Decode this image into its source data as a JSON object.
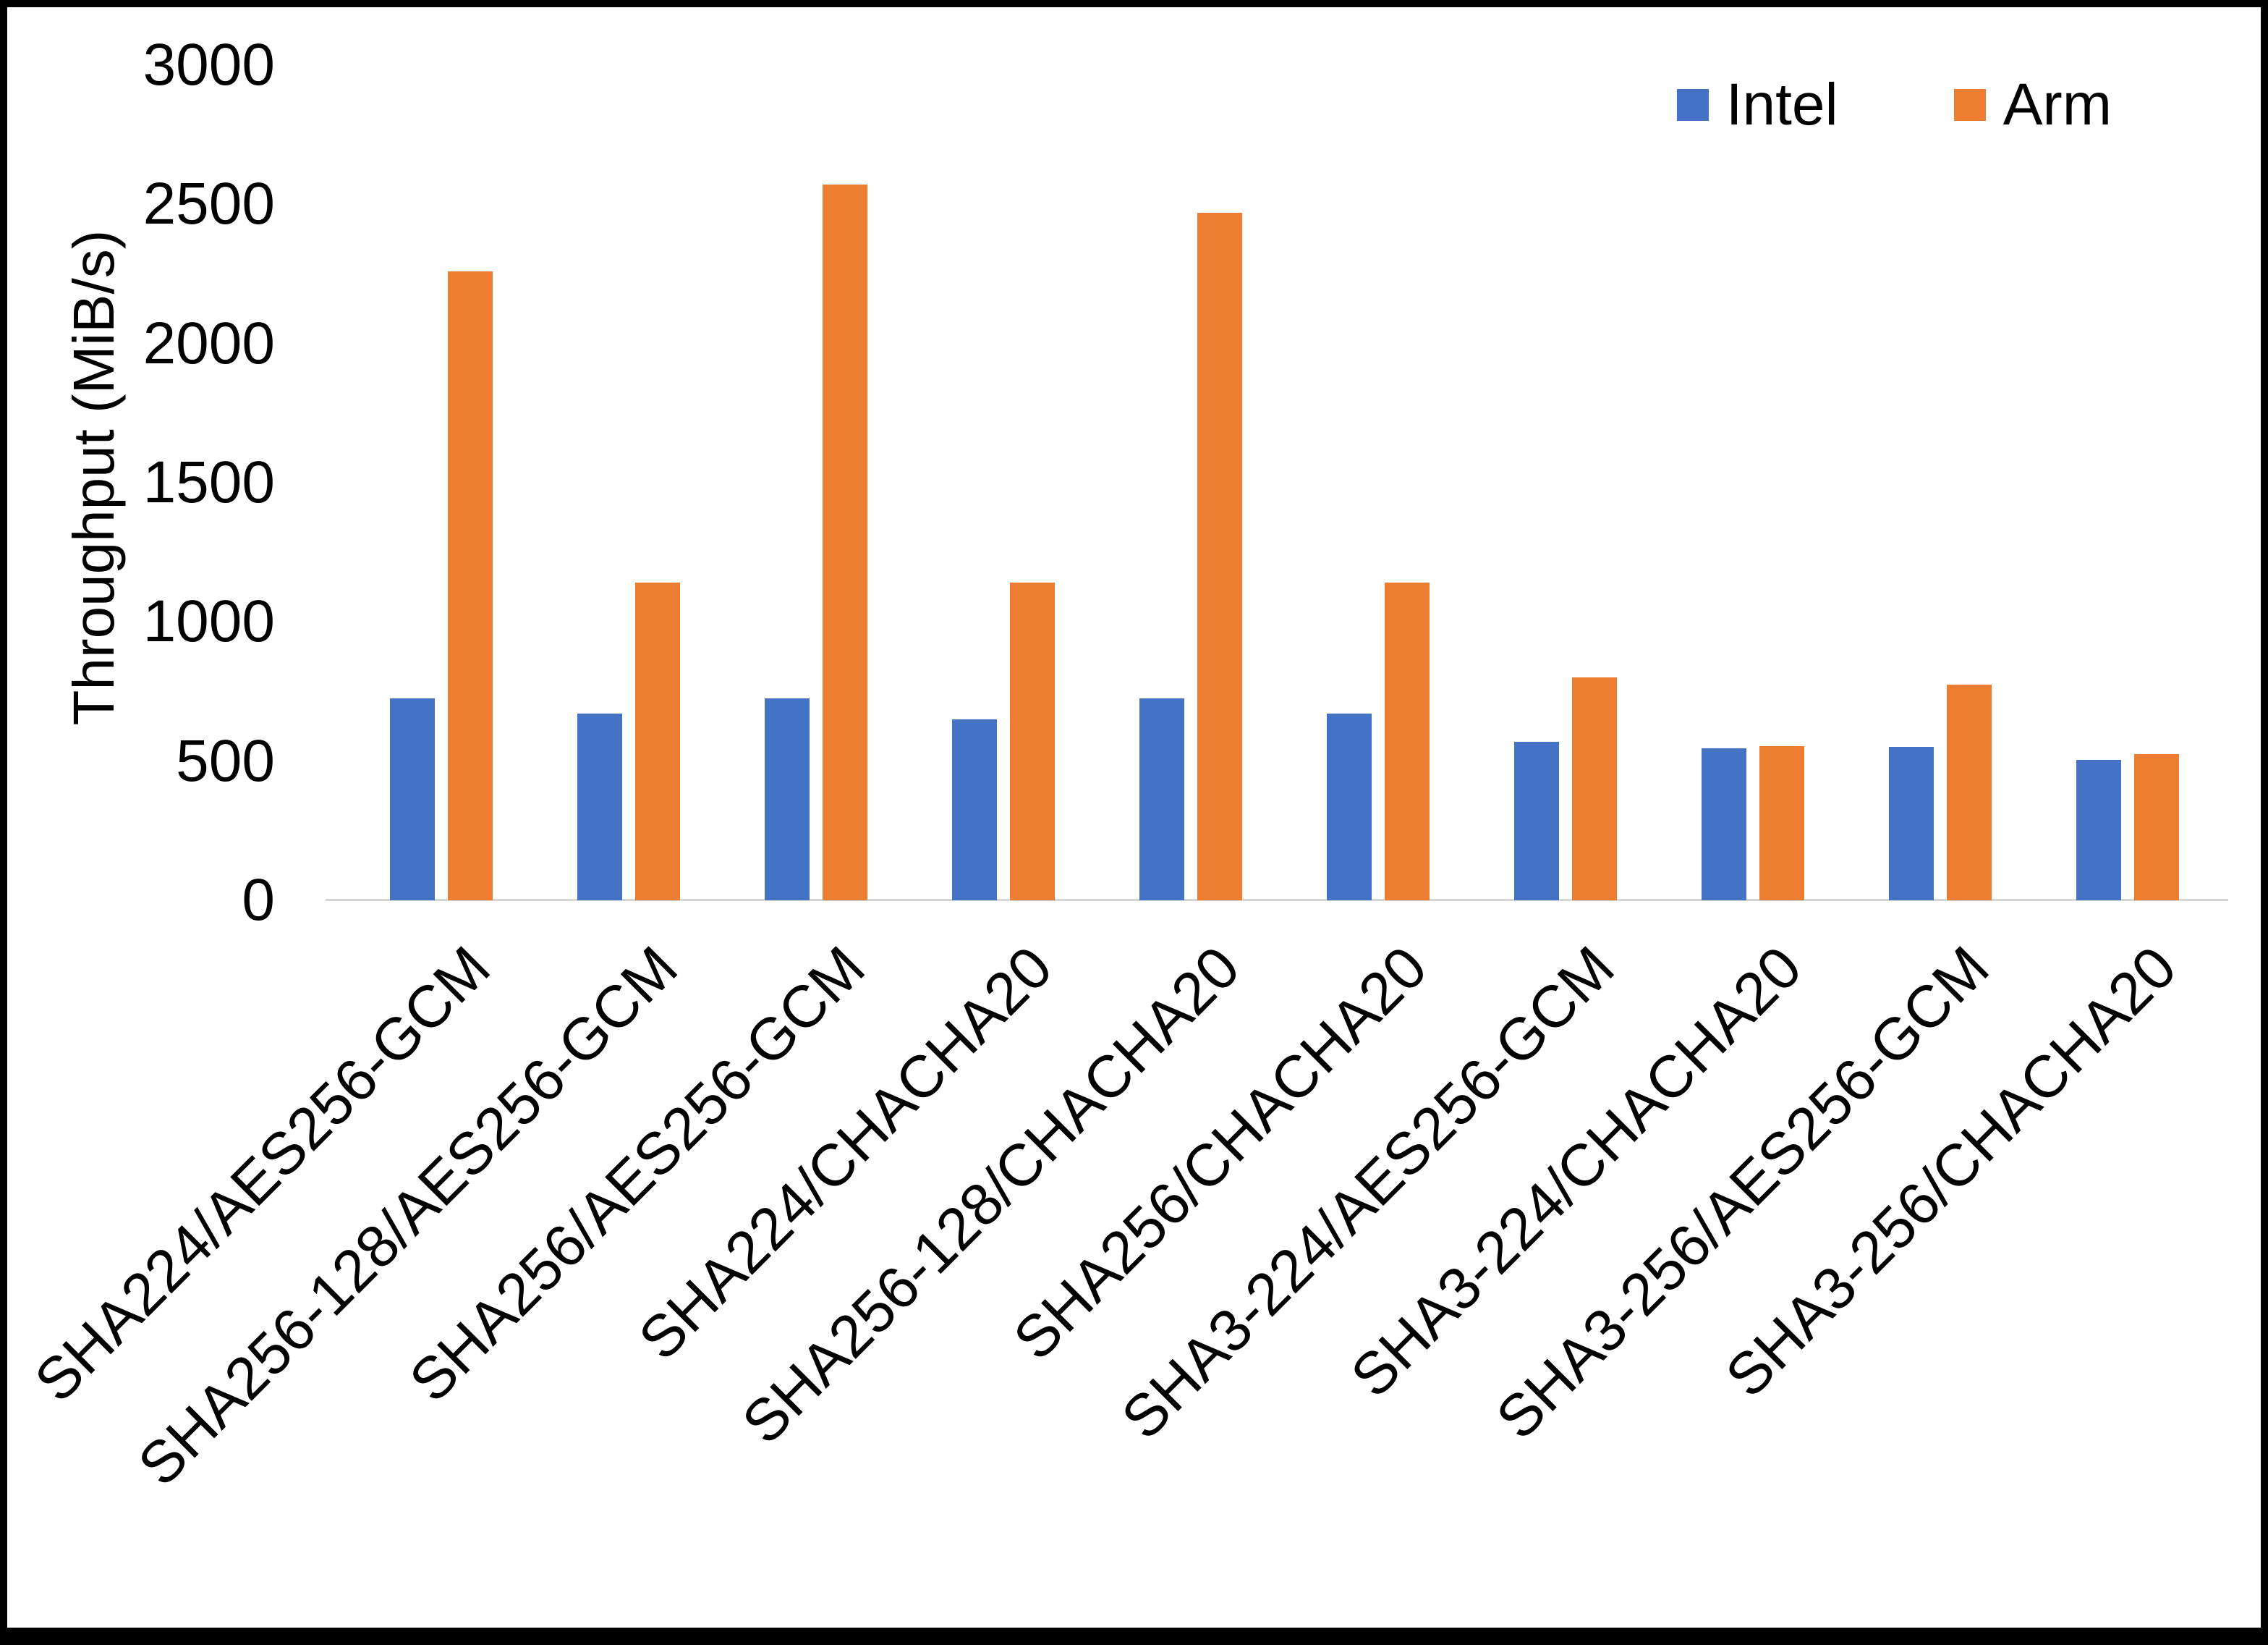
{
  "chart_data": {
    "type": "bar",
    "ylabel": "Throughput (MiB/s)",
    "xlabel": "",
    "ylim": [
      0,
      3000
    ],
    "yticks": [
      0,
      500,
      1000,
      1500,
      2000,
      2500,
      3000
    ],
    "grid": false,
    "legend_position": "top-right",
    "categories": [
      "SHA224/AES256-GCM",
      "SHA256-128/AES256-GCM",
      "SHA256/AES256-GCM",
      "SHA224/CHACHA20",
      "SHA256-128/CHACHA20",
      "SHA256/CHACHA20",
      "SHA3-224/AES256-GCM",
      "SHA3-224/CHACHA20",
      "SHA3-256/AES256-GCM",
      "SHA3-256/CHACHA20"
    ],
    "series": [
      {
        "name": "Intel",
        "color": "#4472C4",
        "values": [
          725,
          670,
          725,
          650,
          725,
          670,
          570,
          545,
          550,
          505
        ]
      },
      {
        "name": "Arm",
        "color": "#ED7D31",
        "values": [
          2260,
          1140,
          2570,
          1140,
          2470,
          1140,
          800,
          555,
          775,
          525
        ]
      }
    ]
  }
}
